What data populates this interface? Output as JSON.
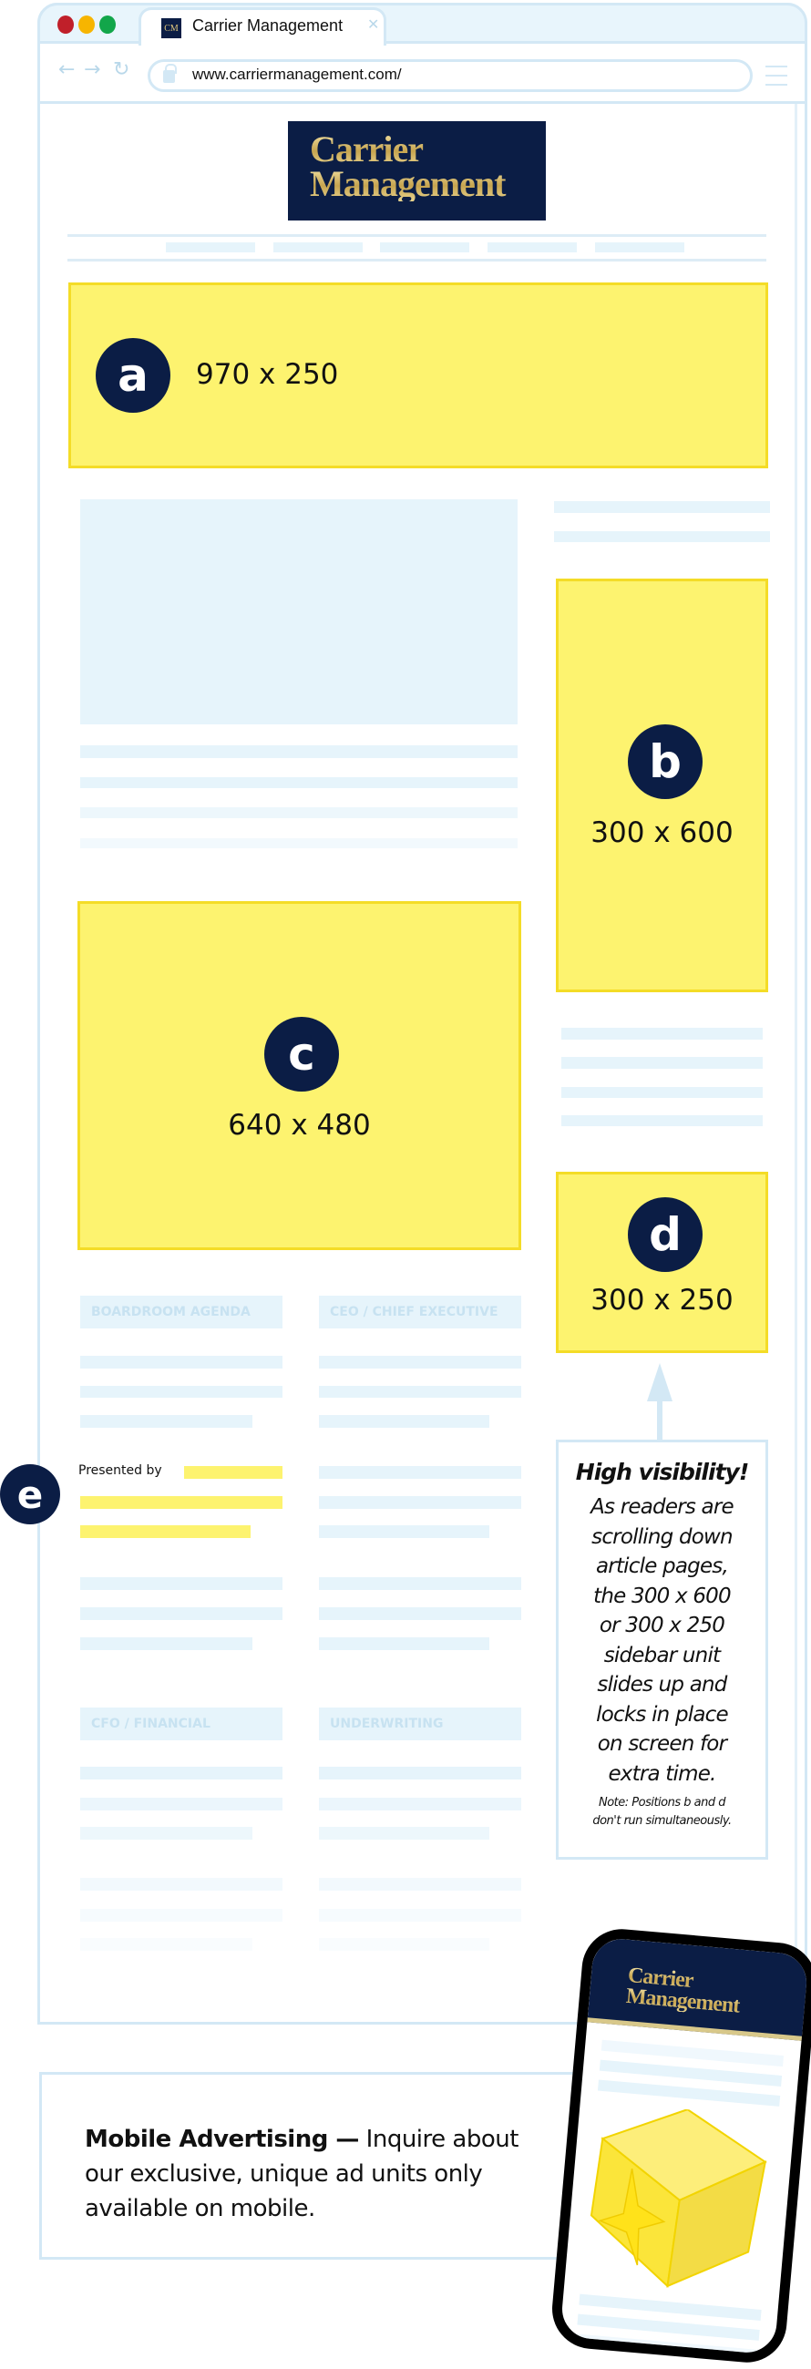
{
  "browser": {
    "tab_title": "Carrier Management",
    "favicon_text": "CM",
    "url": "www.carriermanagement.com/",
    "icons": [
      "back-arrow",
      "forward-arrow",
      "reload",
      "lock",
      "hamburger-menu",
      "close-x"
    ]
  },
  "logo": {
    "line1": "Carrier",
    "line2": "Management"
  },
  "ads": {
    "a": {
      "letter": "a",
      "size": "970 x 250"
    },
    "b": {
      "letter": "b",
      "size": "300 x 600"
    },
    "c": {
      "letter": "c",
      "size": "640 x 480"
    },
    "d": {
      "letter": "d",
      "size": "300 x 250"
    },
    "e": {
      "letter": "e",
      "presented_by": "Presented by"
    }
  },
  "sections": [
    "BOARDROOM AGENDA",
    "CEO / CHIEF EXECUTIVE",
    "CFO / FINANCIAL",
    "UNDERWRITING"
  ],
  "info": {
    "title": "High visibility!",
    "body": [
      "As readers are",
      "scrolling down",
      "article pages,",
      "the 300 x 600",
      "or 300 x 250",
      "sidebar unit",
      "slides up and",
      "locks in place",
      "on screen for",
      "extra time."
    ],
    "note": [
      "Note: Positions b and d",
      "don't run simultaneously."
    ]
  },
  "mobile": {
    "bold": "Mobile Advertising —",
    "text": " Inquire about our exclusive, unique ad units only available on mobile.",
    "logo_line1": "Carrier",
    "logo_line2": "Management"
  },
  "colors": {
    "ad_yellow": "#fdf36f",
    "navy": "#0b1d45",
    "placeholder_blue": "#e6f4fb",
    "frame_blue": "#d3e8f5"
  }
}
